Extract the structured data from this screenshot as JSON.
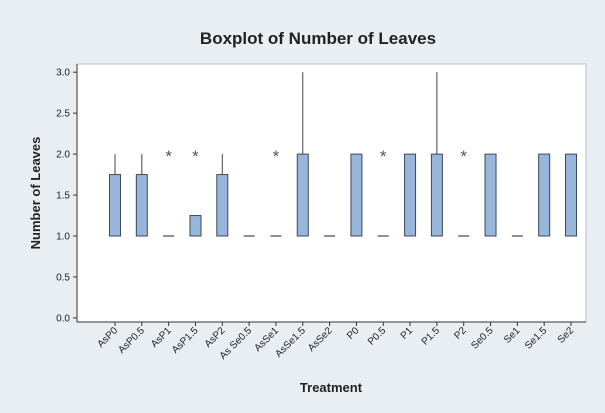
{
  "chart_data": {
    "type": "boxplot",
    "title": "Boxplot of Number of Leaves",
    "xlabel": "Treatment",
    "ylabel": "Number of Leaves",
    "ylim": [
      -0.05,
      3.1
    ],
    "yticks": [
      0.0,
      0.5,
      1.0,
      1.5,
      2.0,
      2.5,
      3.0
    ],
    "ytick_labels": [
      "0.0",
      "0.5",
      "1.0",
      "1.5",
      "2.0",
      "2.5",
      "3.0"
    ],
    "grid": false,
    "box_color": "#98b6d9",
    "box_edge_color": "#3a4a5c",
    "outlier_marker": "*",
    "categories": [
      "AsP0",
      "AsP0.5",
      "AsP1",
      "AsP1.5",
      "AsP2",
      "As Se0.5",
      "AsSe1",
      "AsSe1.5",
      "AsSe2",
      "P0",
      "P0.5",
      "P1",
      "P1.5",
      "P2",
      "Se0.5",
      "Se1",
      "Se1.5",
      "Se2"
    ],
    "boxes": [
      {
        "q1": 1.0,
        "median": 1.0,
        "q3": 1.75,
        "whisker_low": 1.0,
        "whisker_high": 2.0,
        "outliers": []
      },
      {
        "q1": 1.0,
        "median": 1.0,
        "q3": 1.75,
        "whisker_low": 1.0,
        "whisker_high": 2.0,
        "outliers": []
      },
      {
        "q1": 1.0,
        "median": 1.0,
        "q3": 1.0,
        "whisker_low": 1.0,
        "whisker_high": 1.0,
        "outliers": [
          2.0
        ]
      },
      {
        "q1": 1.0,
        "median": 1.0,
        "q3": 1.25,
        "whisker_low": 1.0,
        "whisker_high": 1.25,
        "outliers": [
          2.0
        ]
      },
      {
        "q1": 1.0,
        "median": 1.0,
        "q3": 1.75,
        "whisker_low": 1.0,
        "whisker_high": 2.0,
        "outliers": []
      },
      {
        "q1": 1.0,
        "median": 1.0,
        "q3": 1.0,
        "whisker_low": 1.0,
        "whisker_high": 1.0,
        "outliers": []
      },
      {
        "q1": 1.0,
        "median": 1.0,
        "q3": 1.0,
        "whisker_low": 1.0,
        "whisker_high": 1.0,
        "outliers": [
          2.0
        ]
      },
      {
        "q1": 1.0,
        "median": 1.0,
        "q3": 2.0,
        "whisker_low": 1.0,
        "whisker_high": 3.0,
        "outliers": []
      },
      {
        "q1": 1.0,
        "median": 1.0,
        "q3": 1.0,
        "whisker_low": 1.0,
        "whisker_high": 1.0,
        "outliers": []
      },
      {
        "q1": 1.0,
        "median": 1.0,
        "q3": 2.0,
        "whisker_low": 1.0,
        "whisker_high": 2.0,
        "outliers": []
      },
      {
        "q1": 1.0,
        "median": 1.0,
        "q3": 1.0,
        "whisker_low": 1.0,
        "whisker_high": 1.0,
        "outliers": [
          2.0
        ]
      },
      {
        "q1": 1.0,
        "median": 1.0,
        "q3": 2.0,
        "whisker_low": 1.0,
        "whisker_high": 2.0,
        "outliers": []
      },
      {
        "q1": 1.0,
        "median": 1.0,
        "q3": 2.0,
        "whisker_low": 1.0,
        "whisker_high": 3.0,
        "outliers": []
      },
      {
        "q1": 1.0,
        "median": 1.0,
        "q3": 1.0,
        "whisker_low": 1.0,
        "whisker_high": 1.0,
        "outliers": [
          2.0
        ]
      },
      {
        "q1": 1.0,
        "median": 1.0,
        "q3": 2.0,
        "whisker_low": 1.0,
        "whisker_high": 2.0,
        "outliers": []
      },
      {
        "q1": 1.0,
        "median": 1.0,
        "q3": 1.0,
        "whisker_low": 1.0,
        "whisker_high": 1.0,
        "outliers": []
      },
      {
        "q1": 1.0,
        "median": 1.0,
        "q3": 2.0,
        "whisker_low": 1.0,
        "whisker_high": 2.0,
        "outliers": []
      },
      {
        "q1": 1.0,
        "median": 1.0,
        "q3": 2.0,
        "whisker_low": 1.0,
        "whisker_high": 2.0,
        "outliers": []
      }
    ]
  }
}
